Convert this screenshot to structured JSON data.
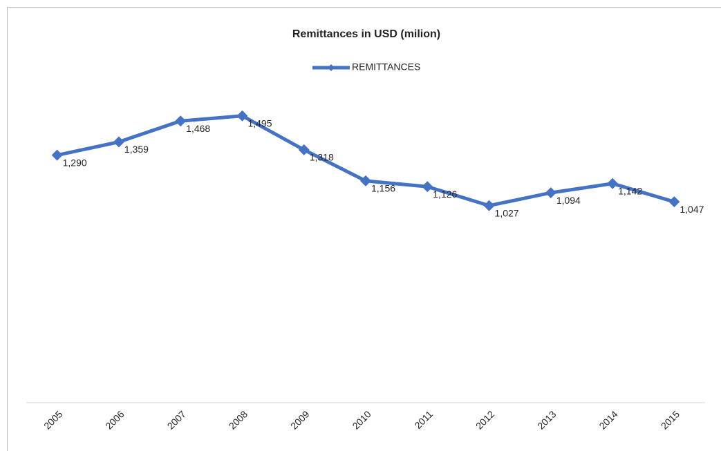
{
  "chart_data": {
    "type": "line",
    "title": "Remittances in USD (milion)",
    "categories": [
      "2005",
      "2006",
      "2007",
      "2008",
      "2009",
      "2010",
      "2011",
      "2012",
      "2013",
      "2014",
      "2015"
    ],
    "series": [
      {
        "name": "REMITTANCES",
        "color": "#4472c4",
        "values": [
          1290,
          1359,
          1468,
          1495,
          1318,
          1156,
          1126,
          1027,
          1094,
          1142,
          1047
        ],
        "value_labels": [
          "1,290",
          "1,359",
          "1,468",
          "1,495",
          "1,318",
          "1,156",
          "1,126",
          "1,027",
          "1,094",
          "1,142",
          "1,047"
        ]
      }
    ],
    "ylim": [
      0,
      1800
    ],
    "legend": "top"
  }
}
